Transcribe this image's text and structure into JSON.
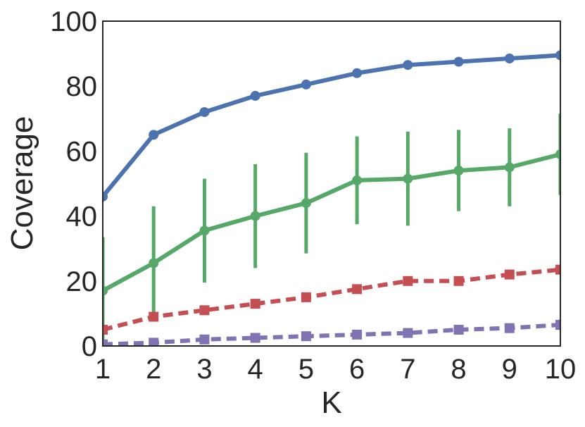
{
  "chart_data": {
    "type": "line",
    "title": "",
    "xlabel": "K",
    "ylabel": "Coverage",
    "xlim": [
      1,
      10
    ],
    "ylim": [
      0,
      100
    ],
    "x": [
      1,
      2,
      3,
      4,
      5,
      6,
      7,
      8,
      9,
      10
    ],
    "xticks": [
      "1",
      "2",
      "3",
      "4",
      "5",
      "6",
      "7",
      "8",
      "9",
      "10"
    ],
    "yticks": [
      "0",
      "20",
      "40",
      "60",
      "80",
      "100"
    ],
    "ytick_values": [
      0,
      20,
      40,
      60,
      80,
      100
    ],
    "grid": false,
    "legend": "none",
    "series": [
      {
        "color": "#4c72b0",
        "line_style": "solid",
        "marker": "circle",
        "values": [
          46,
          65,
          72,
          77,
          80.5,
          84,
          86.5,
          87.5,
          88.5,
          89.5
        ]
      },
      {
        "color": "#55a868",
        "line_style": "solid",
        "marker": "circle",
        "values": [
          17,
          25.5,
          35.5,
          40,
          44,
          51,
          51.5,
          54,
          55,
          59
        ],
        "error": [
          16.5,
          17.5,
          16,
          16,
          15.5,
          13.5,
          14.5,
          12.5,
          12,
          12.5
        ]
      },
      {
        "color": "#c44e52",
        "line_style": "dashed",
        "marker": "square",
        "values": [
          5,
          9,
          11,
          13,
          15,
          17.5,
          20,
          20,
          22,
          23.5
        ]
      },
      {
        "color": "#8172b2",
        "line_style": "dashed",
        "marker": "square",
        "values": [
          0.5,
          1,
          2,
          2.5,
          3,
          3.5,
          4,
          5,
          5.5,
          6.5
        ],
        "error": [
          0.3,
          0.4,
          0.5,
          0.6,
          0.8,
          1,
          1.2,
          1.3,
          1.5,
          1.6
        ]
      }
    ]
  }
}
